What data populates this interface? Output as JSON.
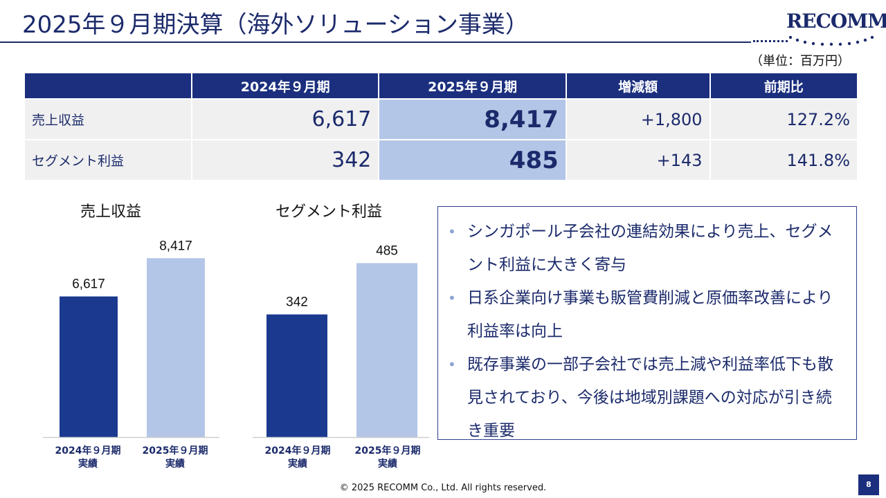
{
  "header": {
    "title": "2025年９月期決算（海外ソリューション事業）",
    "logo_text": "RECOMM",
    "unit": "（単位：百万円）"
  },
  "table": {
    "headers": [
      "",
      "2024年９月期",
      "2025年９月期",
      "増減額",
      "前期比"
    ],
    "rows": [
      {
        "label": "売上収益",
        "prev": "6,617",
        "curr": "8,417",
        "diff": "+1,800",
        "ratio": "127.2%"
      },
      {
        "label": "セグメント利益",
        "prev": "342",
        "curr": "485",
        "diff": "+143",
        "ratio": "141.8%"
      }
    ]
  },
  "chart_data": [
    {
      "type": "bar",
      "title": "売上収益",
      "categories": [
        "2024年９月期 実績",
        "2025年９月期 実績"
      ],
      "category_lines": [
        [
          "2024年９月期",
          "実績"
        ],
        [
          "2025年９月期",
          "実績"
        ]
      ],
      "values": [
        6617,
        8417
      ],
      "value_labels": [
        "6,617",
        "8,417"
      ],
      "colors": [
        "#1b3a8f",
        "#b4c6e7"
      ],
      "ylim": [
        0,
        10800
      ]
    },
    {
      "type": "bar",
      "title": "セグメント利益",
      "categories": [
        "2024年９月期 実績",
        "2025年９月期 実績"
      ],
      "category_lines": [
        [
          "2024年９月期",
          "実績"
        ],
        [
          "2025年９月期",
          "実績"
        ]
      ],
      "values": [
        342,
        485
      ],
      "value_labels": [
        "342",
        "485"
      ],
      "colors": [
        "#1b3a8f",
        "#b4c6e7"
      ],
      "ylim": [
        0,
        640
      ]
    }
  ],
  "notes": {
    "bullet_symbol": "•",
    "items": [
      "シンガポール子会社の連結効果により売上、セグメント利益に大きく寄与",
      "日系企業向け事業も販管費削減と原価率改善により利益率は向上",
      "既存事業の一部子会社では売上減や利益率低下も散見されており、今後は地域別課題への対応が引き続き重要"
    ]
  },
  "footer": {
    "copyright": "© 2025 RECOMM Co., Ltd. All rights reserved.",
    "page_number": "8"
  },
  "colors": {
    "navy": "#1b2f7e",
    "dark_bar": "#1b3a8f",
    "light_bar": "#b4c6e7",
    "row_bg": "#f0f0f0"
  }
}
